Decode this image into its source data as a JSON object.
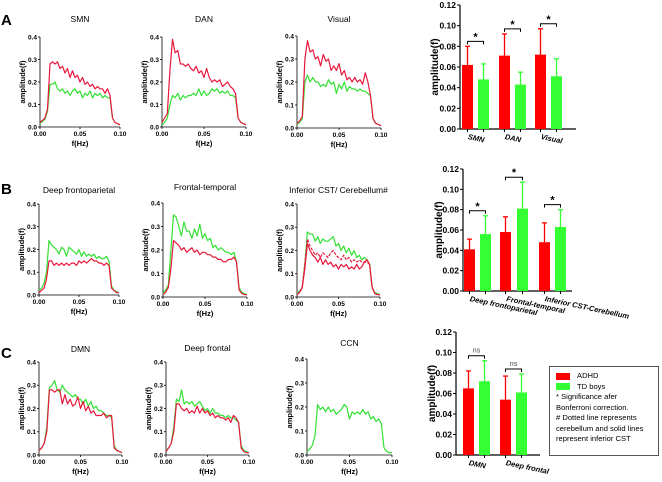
{
  "panel_letters": [
    "A",
    "B",
    "C"
  ],
  "colors": {
    "adhd_line": "#e8173b",
    "td_line": "#33e033",
    "adhd_bar": "#ff0000",
    "td_bar": "#33ff33"
  },
  "chart_data": [
    {
      "id": "A-SMN",
      "type": "line",
      "title": "SMN",
      "xlabel": "f(Hz)",
      "ylabel": "amplitude(f)",
      "xlim": [
        0,
        0.1
      ],
      "ylim": [
        0,
        0.4
      ],
      "xticks": [
        "0.00",
        "0.05",
        "0.10"
      ],
      "yticks": [
        "0.0",
        "0.1",
        "0.2",
        "0.3",
        "0.4"
      ],
      "series": [
        {
          "name": "ADHD",
          "style": "solid",
          "values": [
            0.02,
            0.03,
            0.04,
            0.08,
            0.28,
            0.29,
            0.28,
            0.29,
            0.26,
            0.27,
            0.24,
            0.26,
            0.22,
            0.25,
            0.22,
            0.23,
            0.2,
            0.22,
            0.19,
            0.2,
            0.18,
            0.19,
            0.17,
            0.18,
            0.17,
            0.17,
            0.15,
            0.17,
            0.14,
            0.04,
            0.02,
            0.015,
            0.01
          ]
        },
        {
          "name": "TD boys",
          "style": "solid",
          "values": [
            0.015,
            0.025,
            0.035,
            0.07,
            0.19,
            0.19,
            0.2,
            0.17,
            0.16,
            0.17,
            0.15,
            0.16,
            0.14,
            0.16,
            0.17,
            0.15,
            0.16,
            0.13,
            0.15,
            0.14,
            0.16,
            0.13,
            0.15,
            0.14,
            0.15,
            0.13,
            0.14,
            0.13,
            0.13,
            0.04,
            0.02,
            0.015,
            0.01
          ]
        }
      ]
    },
    {
      "id": "A-DAN",
      "type": "line",
      "title": "DAN",
      "xlabel": "f(Hz)",
      "ylabel": "amplitude(f)",
      "xlim": [
        0,
        0.1
      ],
      "ylim": [
        0,
        0.4
      ],
      "xticks": [
        "0.00",
        "0.05",
        "0.10"
      ],
      "yticks": [
        "0.0",
        "0.1",
        "0.2",
        "0.3",
        "0.4"
      ],
      "series": [
        {
          "name": "ADHD",
          "style": "solid",
          "values": [
            0.02,
            0.04,
            0.06,
            0.25,
            0.39,
            0.33,
            0.34,
            0.28,
            0.28,
            0.27,
            0.28,
            0.26,
            0.25,
            0.27,
            0.24,
            0.25,
            0.22,
            0.26,
            0.22,
            0.2,
            0.21,
            0.2,
            0.21,
            0.18,
            0.19,
            0.2,
            0.18,
            0.17,
            0.15,
            0.04,
            0.02,
            0.015,
            0.01
          ]
        },
        {
          "name": "TD boys",
          "style": "solid",
          "values": [
            0.01,
            0.02,
            0.04,
            0.1,
            0.14,
            0.13,
            0.15,
            0.12,
            0.14,
            0.13,
            0.14,
            0.14,
            0.15,
            0.14,
            0.17,
            0.14,
            0.16,
            0.14,
            0.15,
            0.17,
            0.16,
            0.17,
            0.15,
            0.16,
            0.15,
            0.16,
            0.14,
            0.14,
            0.13,
            0.04,
            0.02,
            0.015,
            0.01
          ]
        }
      ]
    },
    {
      "id": "A-Visual",
      "type": "line",
      "title": "Visual",
      "xlabel": "f(Hz)",
      "ylabel": "amplitude(f)",
      "xlim": [
        0,
        0.1
      ],
      "ylim": [
        0,
        0.4
      ],
      "xticks": [
        "0.00",
        "0.05",
        "0.10"
      ],
      "yticks": [
        "0.0",
        "0.1",
        "0.2",
        "0.3",
        "0.4"
      ],
      "series": [
        {
          "name": "ADHD",
          "style": "solid",
          "values": [
            0.02,
            0.03,
            0.05,
            0.3,
            0.38,
            0.33,
            0.34,
            0.3,
            0.31,
            0.27,
            0.32,
            0.29,
            0.3,
            0.25,
            0.27,
            0.25,
            0.28,
            0.23,
            0.25,
            0.21,
            0.22,
            0.2,
            0.22,
            0.2,
            0.21,
            0.19,
            0.24,
            0.2,
            0.14,
            0.04,
            0.02,
            0.015,
            0.01
          ]
        },
        {
          "name": "TD boys",
          "style": "solid",
          "values": [
            0.015,
            0.025,
            0.04,
            0.2,
            0.23,
            0.2,
            0.22,
            0.2,
            0.2,
            0.18,
            0.19,
            0.18,
            0.21,
            0.19,
            0.2,
            0.15,
            0.19,
            0.17,
            0.2,
            0.16,
            0.18,
            0.17,
            0.17,
            0.16,
            0.17,
            0.16,
            0.16,
            0.15,
            0.14,
            0.04,
            0.02,
            0.015,
            0.01
          ]
        }
      ]
    },
    {
      "id": "B-DeepFrontoparietal",
      "type": "line",
      "title": "Deep frontoparietal",
      "xlabel": "f(Hz)",
      "ylabel": "amplitude(f)",
      "xlim": [
        0,
        0.1
      ],
      "ylim": [
        0,
        0.4
      ],
      "xticks": [
        "0.00",
        "0.05",
        "0.10"
      ],
      "yticks": [
        "0.0",
        "0.1",
        "0.2",
        "0.3",
        "0.4"
      ],
      "series": [
        {
          "name": "ADHD",
          "style": "solid",
          "values": [
            0.01,
            0.02,
            0.03,
            0.07,
            0.15,
            0.15,
            0.13,
            0.14,
            0.13,
            0.14,
            0.13,
            0.14,
            0.13,
            0.14,
            0.14,
            0.13,
            0.15,
            0.14,
            0.15,
            0.14,
            0.15,
            0.16,
            0.15,
            0.15,
            0.14,
            0.14,
            0.13,
            0.14,
            0.13,
            0.03,
            0.02,
            0.01,
            0.01
          ]
        },
        {
          "name": "TD boys",
          "style": "solid",
          "values": [
            0.02,
            0.03,
            0.05,
            0.1,
            0.24,
            0.22,
            0.21,
            0.2,
            0.18,
            0.21,
            0.2,
            0.17,
            0.21,
            0.2,
            0.19,
            0.18,
            0.2,
            0.17,
            0.19,
            0.17,
            0.18,
            0.17,
            0.18,
            0.16,
            0.17,
            0.16,
            0.16,
            0.17,
            0.15,
            0.04,
            0.02,
            0.015,
            0.01
          ]
        }
      ]
    },
    {
      "id": "B-FrontalTemporal",
      "type": "line",
      "title": "Frontal-temporal",
      "xlabel": "f(Hz)",
      "ylabel": "amplitude(f)",
      "xlim": [
        0,
        0.1
      ],
      "ylim": [
        0,
        0.4
      ],
      "xticks": [
        "0.00",
        "0.05",
        "0.10"
      ],
      "yticks": [
        "0.0",
        "0.1",
        "0.2",
        "0.3",
        "0.4"
      ],
      "series": [
        {
          "name": "ADHD",
          "style": "solid",
          "values": [
            0.01,
            0.02,
            0.04,
            0.12,
            0.24,
            0.23,
            0.22,
            0.2,
            0.21,
            0.19,
            0.2,
            0.21,
            0.19,
            0.2,
            0.18,
            0.19,
            0.19,
            0.18,
            0.18,
            0.17,
            0.17,
            0.16,
            0.16,
            0.15,
            0.15,
            0.16,
            0.16,
            0.17,
            0.15,
            0.03,
            0.015,
            0.01,
            0.01
          ]
        },
        {
          "name": "TD boys",
          "style": "solid",
          "values": [
            0.015,
            0.03,
            0.05,
            0.2,
            0.35,
            0.34,
            0.3,
            0.26,
            0.32,
            0.28,
            0.28,
            0.25,
            0.29,
            0.26,
            0.31,
            0.25,
            0.27,
            0.24,
            0.25,
            0.21,
            0.22,
            0.2,
            0.21,
            0.2,
            0.19,
            0.19,
            0.18,
            0.19,
            0.15,
            0.04,
            0.02,
            0.015,
            0.01
          ]
        }
      ]
    },
    {
      "id": "B-InferiorCST-Cerebellum",
      "type": "line",
      "title": "Inferior CST/ Cerebellum#",
      "xlabel": "f(Hz)",
      "ylabel": "amplitude(f)",
      "xlim": [
        0,
        0.1
      ],
      "ylim": [
        0,
        0.4
      ],
      "xticks": [
        "0.00",
        "0.05",
        "0.10"
      ],
      "yticks": [
        "0.0",
        "0.1",
        "0.2",
        "0.3",
        "0.4"
      ],
      "series": [
        {
          "name": "ADHD (inferior CST)",
          "style": "solid",
          "values": [
            0.01,
            0.02,
            0.04,
            0.12,
            0.23,
            0.2,
            0.18,
            0.17,
            0.15,
            0.17,
            0.14,
            0.16,
            0.14,
            0.15,
            0.13,
            0.14,
            0.12,
            0.14,
            0.13,
            0.14,
            0.12,
            0.13,
            0.12,
            0.14,
            0.12,
            0.13,
            0.15,
            0.16,
            0.14,
            0.04,
            0.015,
            0.01,
            0.01
          ]
        },
        {
          "name": "ADHD (cerebellum)",
          "style": "dashed",
          "values": [
            0.01,
            0.02,
            0.04,
            0.14,
            0.25,
            0.22,
            0.2,
            0.18,
            0.19,
            0.17,
            0.19,
            0.18,
            0.17,
            0.19,
            0.2,
            0.18,
            0.17,
            0.16,
            0.18,
            0.16,
            0.17,
            0.15,
            0.16,
            0.15,
            0.16,
            0.15,
            0.15,
            0.15,
            0.14,
            0.04,
            0.015,
            0.01,
            0.01
          ]
        },
        {
          "name": "TD boys",
          "style": "solid",
          "values": [
            0.015,
            0.025,
            0.04,
            0.14,
            0.28,
            0.27,
            0.27,
            0.24,
            0.26,
            0.23,
            0.25,
            0.24,
            0.24,
            0.25,
            0.26,
            0.22,
            0.23,
            0.2,
            0.22,
            0.19,
            0.21,
            0.18,
            0.2,
            0.17,
            0.18,
            0.16,
            0.17,
            0.16,
            0.14,
            0.04,
            0.02,
            0.015,
            0.01
          ]
        }
      ]
    },
    {
      "id": "C-DMN",
      "type": "line",
      "title": "DMN",
      "xlabel": "f(Hz)",
      "ylabel": "amplitude(f)",
      "xlim": [
        0,
        0.1
      ],
      "ylim": [
        0,
        0.4
      ],
      "xticks": [
        "0.00",
        "0.05",
        "0.10"
      ],
      "yticks": [
        "0.0",
        "0.1",
        "0.2",
        "0.3",
        "0.4"
      ],
      "series": [
        {
          "name": "ADHD",
          "style": "solid",
          "values": [
            0.02,
            0.03,
            0.05,
            0.1,
            0.28,
            0.28,
            0.27,
            0.28,
            0.28,
            0.22,
            0.26,
            0.22,
            0.24,
            0.21,
            0.22,
            0.25,
            0.2,
            0.23,
            0.19,
            0.21,
            0.18,
            0.19,
            0.17,
            0.17,
            0.17,
            0.18,
            0.16,
            0.17,
            0.17,
            0.03,
            0.02,
            0.015,
            0.01
          ]
        },
        {
          "name": "TD boys",
          "style": "solid",
          "values": [
            0.02,
            0.03,
            0.05,
            0.12,
            0.29,
            0.3,
            0.32,
            0.28,
            0.27,
            0.3,
            0.28,
            0.27,
            0.26,
            0.25,
            0.26,
            0.24,
            0.24,
            0.22,
            0.24,
            0.21,
            0.23,
            0.2,
            0.21,
            0.19,
            0.19,
            0.18,
            0.17,
            0.17,
            0.16,
            0.04,
            0.02,
            0.015,
            0.01
          ]
        }
      ]
    },
    {
      "id": "C-DeepFrontal",
      "type": "line",
      "title": "Deep frontal",
      "xlabel": "f(Hz)",
      "ylabel": "amplitude(f)",
      "xlim": [
        0,
        0.1
      ],
      "ylim": [
        0,
        0.4
      ],
      "xticks": [
        "0.00",
        "0.05",
        "0.10"
      ],
      "yticks": [
        "0.0",
        "0.1",
        "0.2",
        "0.3",
        "0.4"
      ],
      "series": [
        {
          "name": "ADHD",
          "style": "solid",
          "values": [
            0.015,
            0.03,
            0.05,
            0.1,
            0.22,
            0.22,
            0.2,
            0.19,
            0.2,
            0.18,
            0.19,
            0.18,
            0.21,
            0.18,
            0.2,
            0.18,
            0.19,
            0.17,
            0.18,
            0.16,
            0.17,
            0.16,
            0.16,
            0.15,
            0.16,
            0.14,
            0.17,
            0.16,
            0.14,
            0.03,
            0.015,
            0.01,
            0.01
          ]
        },
        {
          "name": "TD boys",
          "style": "solid",
          "values": [
            0.02,
            0.03,
            0.05,
            0.12,
            0.24,
            0.23,
            0.28,
            0.22,
            0.23,
            0.22,
            0.23,
            0.21,
            0.22,
            0.23,
            0.21,
            0.19,
            0.2,
            0.18,
            0.2,
            0.18,
            0.18,
            0.17,
            0.17,
            0.16,
            0.17,
            0.16,
            0.16,
            0.15,
            0.14,
            0.04,
            0.02,
            0.015,
            0.01
          ]
        }
      ]
    },
    {
      "id": "C-CCN",
      "type": "line",
      "title": "CCN",
      "xlabel": "f(Hz)",
      "ylabel": "amplitude(f)",
      "xlim": [
        0,
        0.1
      ],
      "ylim": [
        0,
        0.4
      ],
      "xticks": [
        "0.00",
        "0.05",
        "0.10"
      ],
      "yticks": [
        "0.0",
        "0.1",
        "0.2",
        "0.3",
        "0.4"
      ],
      "series": [
        {
          "name": "TD boys",
          "style": "solid",
          "values": [
            0.015,
            0.025,
            0.04,
            0.08,
            0.21,
            0.19,
            0.2,
            0.18,
            0.2,
            0.18,
            0.19,
            0.17,
            0.18,
            0.19,
            0.21,
            0.2,
            0.15,
            0.18,
            0.17,
            0.18,
            0.17,
            0.19,
            0.17,
            0.18,
            0.15,
            0.16,
            0.14,
            0.15,
            0.13,
            0.03,
            0.015,
            0.01,
            0.01
          ]
        }
      ]
    },
    {
      "id": "A-bar",
      "type": "bar",
      "ylabel": "amplitude(f)",
      "ylim": [
        0,
        0.12
      ],
      "yticks": [
        "0.00",
        "0.02",
        "0.04",
        "0.06",
        "0.08",
        "0.10",
        "0.12"
      ],
      "categories": [
        "SMN",
        "DAN",
        "Visual"
      ],
      "series": [
        {
          "name": "ADHD",
          "values": [
            0.062,
            0.071,
            0.072
          ],
          "error_upper": [
            0.08,
            0.092,
            0.097
          ]
        },
        {
          "name": "TD boys",
          "values": [
            0.048,
            0.043,
            0.051
          ],
          "error_upper": [
            0.063,
            0.055,
            0.068
          ]
        }
      ],
      "significance": [
        "*",
        "*",
        "*"
      ]
    },
    {
      "id": "B-bar",
      "type": "bar",
      "ylabel": "amplitude(f)",
      "ylim": [
        0,
        0.12
      ],
      "yticks": [
        "0.00",
        "0.02",
        "0.04",
        "0.06",
        "0.08",
        "0.10",
        "0.12"
      ],
      "categories": [
        "Deep frontoparietal",
        "Frontal-temporal",
        "Inferior CST-Cerebellum"
      ],
      "series": [
        {
          "name": "ADHD",
          "values": [
            0.041,
            0.058,
            0.048
          ],
          "error_upper": [
            0.051,
            0.073,
            0.067
          ]
        },
        {
          "name": "TD boys",
          "values": [
            0.056,
            0.081,
            0.063
          ],
          "error_upper": [
            0.074,
            0.107,
            0.08
          ]
        }
      ],
      "significance": [
        "*",
        "*",
        "*"
      ]
    },
    {
      "id": "C-bar",
      "type": "bar",
      "ylabel": "amplitude(f)",
      "ylim": [
        0,
        0.12
      ],
      "yticks": [
        "0.00",
        "0.02",
        "0.04",
        "0.06",
        "0.08",
        "0.10",
        "0.12"
      ],
      "categories": [
        "DMN",
        "Deep frontal"
      ],
      "series": [
        {
          "name": "ADHD",
          "values": [
            0.065,
            0.054
          ],
          "error_upper": [
            0.082,
            0.077
          ]
        },
        {
          "name": "TD boys",
          "values": [
            0.072,
            0.061
          ],
          "error_upper": [
            0.092,
            0.079
          ]
        }
      ],
      "significance": [
        "ns",
        "ns"
      ]
    }
  ],
  "legend": {
    "items": [
      {
        "label": "ADHD",
        "color": "#ff0000"
      },
      {
        "label": "TD boys",
        "color": "#33ff33"
      }
    ],
    "notes": [
      "* Significance afer",
      "Bonferroni correction.",
      "# Dotted line represents",
      "cerebellum and solid lines",
      "represent inferior CST"
    ]
  }
}
